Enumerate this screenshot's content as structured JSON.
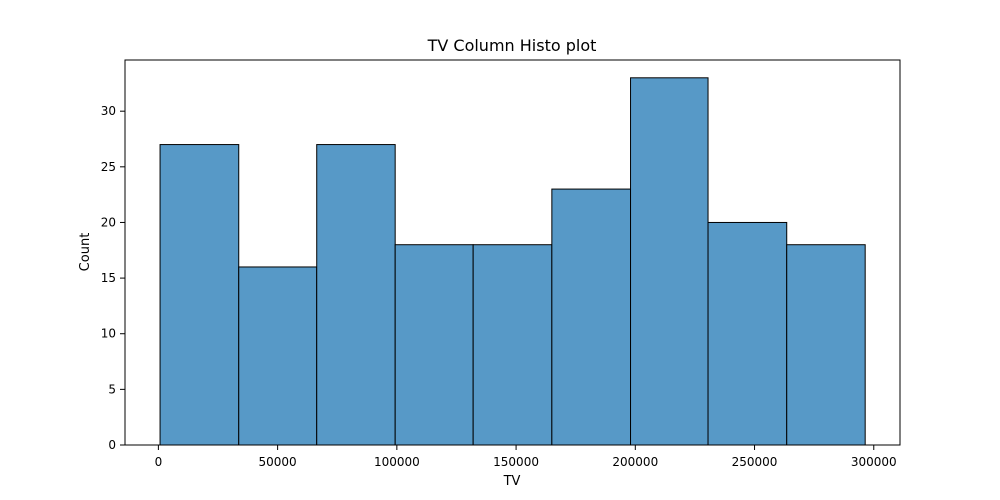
{
  "chart_data": {
    "type": "bar",
    "title": "TV Column Histo plot",
    "xlabel": "TV",
    "ylabel": "Count",
    "bins": [
      {
        "start": 700,
        "end": 33700,
        "count": 27
      },
      {
        "start": 33700,
        "end": 66400,
        "count": 16
      },
      {
        "start": 66400,
        "end": 99300,
        "count": 27
      },
      {
        "start": 99300,
        "end": 132000,
        "count": 18
      },
      {
        "start": 132000,
        "end": 165000,
        "count": 18
      },
      {
        "start": 165000,
        "end": 198000,
        "count": 23
      },
      {
        "start": 198000,
        "end": 230500,
        "count": 33
      },
      {
        "start": 230500,
        "end": 263500,
        "count": 20
      },
      {
        "start": 263500,
        "end": 296400,
        "count": 18
      }
    ],
    "xlim": [
      -14000,
      311000
    ],
    "ylim": [
      0,
      34.6
    ],
    "xticks": [
      0,
      50000,
      100000,
      150000,
      200000,
      250000,
      300000
    ],
    "xtick_labels": [
      "0",
      "50000",
      "100000",
      "150000",
      "200000",
      "250000",
      "300000"
    ],
    "yticks": [
      0,
      5,
      10,
      15,
      20,
      25,
      30
    ],
    "ytick_labels": [
      "0",
      "5",
      "10",
      "15",
      "20",
      "25",
      "30"
    ],
    "grid": false,
    "bar_color": "#5799c7",
    "edge_color": "#000000"
  }
}
